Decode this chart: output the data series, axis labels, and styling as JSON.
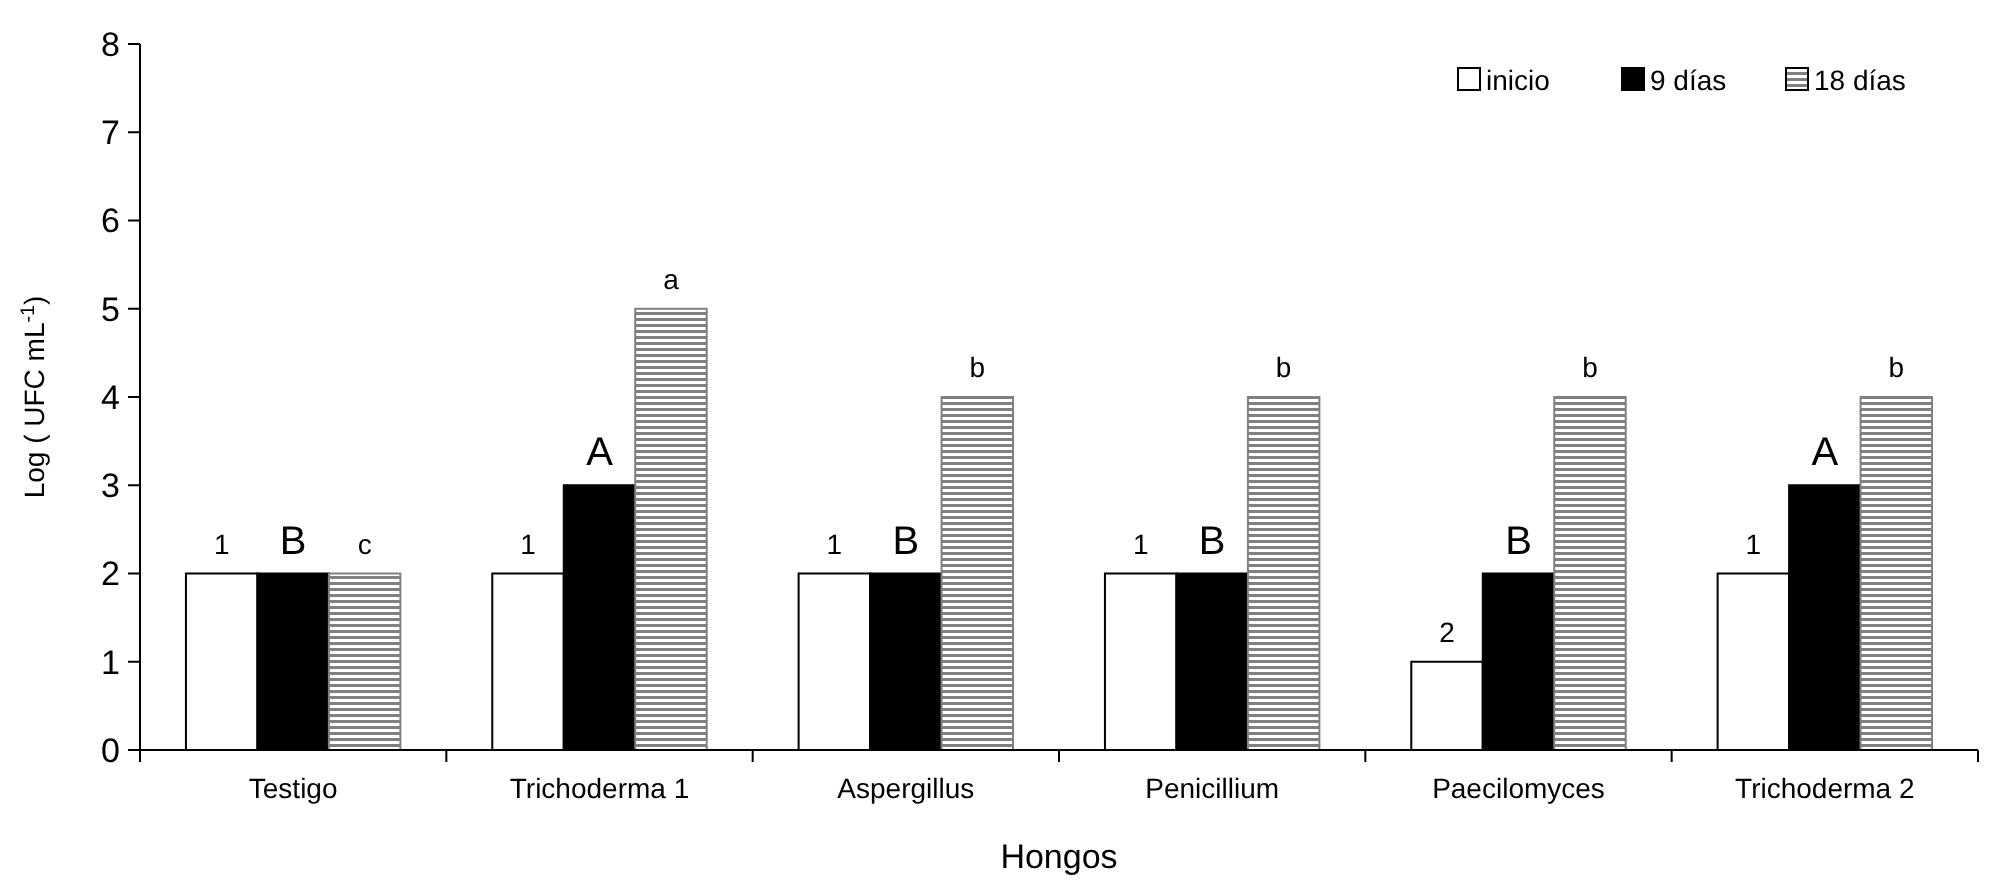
{
  "chart_data": {
    "type": "bar",
    "xlabel": "Hongos",
    "ylabel": "Log ( UFC mL$^{-1}$)",
    "categories": [
      "Testigo",
      "Trichoderma 1",
      "Aspergillus",
      "Penicillium",
      "Paecilomyces",
      "Trichoderma 2"
    ],
    "series": [
      {
        "name": "inicio",
        "color": "#ffffff",
        "values": [
          2,
          2,
          2,
          2,
          1,
          2
        ]
      },
      {
        "name": "9 días",
        "color": "#000000",
        "values": [
          2,
          3,
          2,
          2,
          2,
          3
        ]
      },
      {
        "name": "18 días",
        "color": "#808080",
        "values": [
          2,
          5,
          4,
          4,
          4,
          4
        ]
      }
    ],
    "annotations": [
      "1",
      "B",
      "c",
      "1",
      "A",
      "a",
      "1",
      "B",
      "b",
      "1",
      "B",
      "b",
      "2",
      "B",
      "b",
      "1",
      "A",
      "b"
    ],
    "ylim": [
      0,
      8
    ],
    "yticks": [
      0,
      1,
      2,
      3,
      4,
      5,
      6,
      7,
      8
    ],
    "grid": false,
    "legend": "top right"
  }
}
